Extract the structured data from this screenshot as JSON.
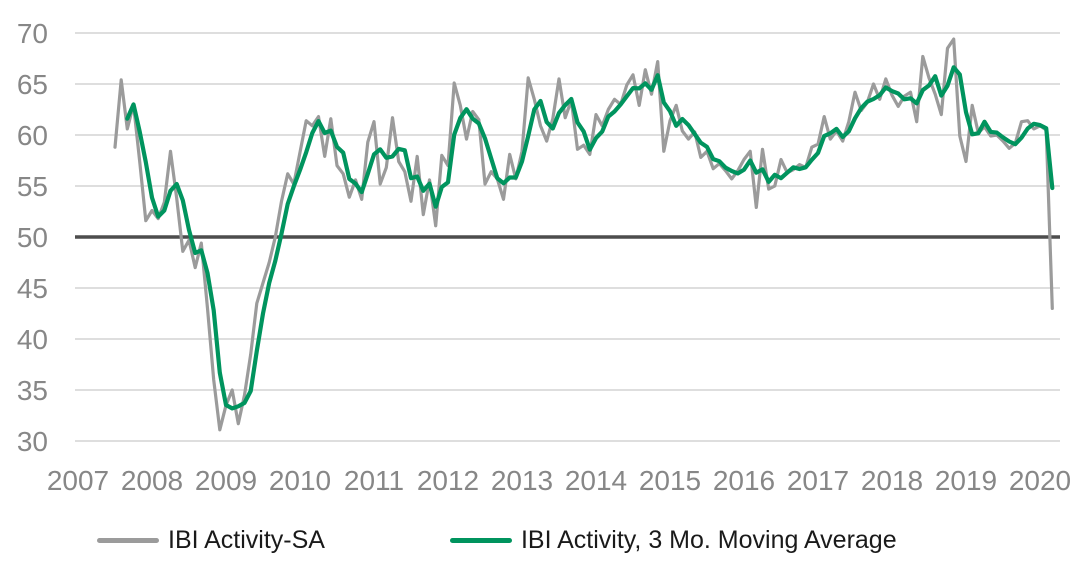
{
  "chart_data": {
    "type": "line",
    "title": "",
    "frequency": "monthly",
    "x_start": "2007-07",
    "x_end": "2020-03",
    "start_month_offset_from_2007_jan": 6,
    "x_tick_labels": [
      "2007",
      "2008",
      "2009",
      "2010",
      "2011",
      "2012",
      "2013",
      "2014",
      "2015",
      "2016",
      "2017",
      "2018",
      "2019",
      "2020"
    ],
    "y_ticks": [
      30,
      35,
      40,
      45,
      50,
      55,
      60,
      65,
      70
    ],
    "y_tick_labels": [
      "30",
      "35",
      "40",
      "45",
      "50",
      "55",
      "60",
      "65",
      "70"
    ],
    "ylim": [
      30,
      70
    ],
    "grid": true,
    "gridline_color": "#c9c9c9",
    "reference_line": {
      "value": 50,
      "color": "#4d4d4d",
      "width": 3.5
    },
    "axis_label_color": "#878787",
    "legend_position": "bottom",
    "series": [
      {
        "name": "IBI Activity-SA",
        "color": "#9b9b9b",
        "width": 3.2,
        "values": [
          58.8,
          65.4,
          60.6,
          63.0,
          57.4,
          51.6,
          52.6,
          51.8,
          53.4,
          58.4,
          53.8,
          48.6,
          49.7,
          47.0,
          49.4,
          43.0,
          36.0,
          31.1,
          33.5,
          35.0,
          31.7,
          34.5,
          38.5,
          43.5,
          45.5,
          47.5,
          50.0,
          53.5,
          56.2,
          55.2,
          58.3,
          61.4,
          60.9,
          61.8,
          57.9,
          61.6,
          57.0,
          56.2,
          53.9,
          55.6,
          53.7,
          59.3,
          61.3,
          55.2,
          56.8,
          61.7,
          57.4,
          56.4,
          53.5,
          57.9,
          52.2,
          55.6,
          51.1,
          58.0,
          57.0,
          65.1,
          62.9,
          59.6,
          62.3,
          61.5,
          55.2,
          56.4,
          55.7,
          53.7,
          58.1,
          55.7,
          58.4,
          65.6,
          63.5,
          60.9,
          59.4,
          61.6,
          65.5,
          61.7,
          63.4,
          58.6,
          59.0,
          58.1,
          62.0,
          60.9,
          62.5,
          63.5,
          63.0,
          64.9,
          65.9,
          62.9,
          66.4,
          64.0,
          67.2,
          58.4,
          61.4,
          62.9,
          60.4,
          59.6,
          60.3,
          57.8,
          58.4,
          56.7,
          57.2,
          56.5,
          55.7,
          56.5,
          57.6,
          58.4,
          52.9,
          58.6,
          54.7,
          55.0,
          57.6,
          56.3,
          56.6,
          57.1,
          56.8,
          58.8,
          59.1,
          61.8,
          59.6,
          60.4,
          59.4,
          61.3,
          64.2,
          62.4,
          63.2,
          65.0,
          63.5,
          65.5,
          63.9,
          62.8,
          63.8,
          64.2,
          61.3,
          67.7,
          65.6,
          64.0,
          62.0,
          68.5,
          69.4,
          59.9,
          57.4,
          62.9,
          60.2,
          60.8,
          59.9,
          60.0,
          59.4,
          58.7,
          59.2,
          61.3,
          61.4,
          60.6,
          60.9,
          60.5,
          43.0
        ]
      },
      {
        "name": "IBI Activity, 3 Mo. Moving Average",
        "color": "#00945e",
        "width": 4.2,
        "derived": "trailing 3-month moving average of IBI Activity-SA"
      }
    ]
  },
  "legend": {
    "items": [
      {
        "label": "IBI Activity-SA",
        "color": "#9b9b9b"
      },
      {
        "label": "IBI Activity, 3 Mo. Moving Average",
        "color": "#00945e"
      }
    ]
  }
}
